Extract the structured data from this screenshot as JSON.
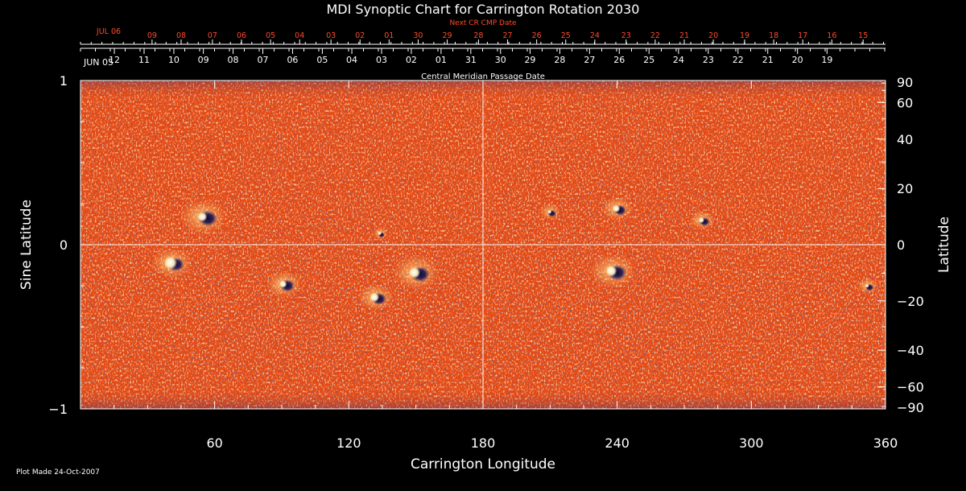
{
  "chart_data": {
    "type": "heatmap",
    "title": "MDI Synoptic Chart for Carrington Rotation 2030",
    "xlabel": "Carrington Longitude",
    "ylabel_left": "Sine Latitude",
    "ylabel_right": "Latitude",
    "xlim": [
      0,
      360
    ],
    "ylim": [
      -1,
      1
    ],
    "x_ticks": [
      "60",
      "120",
      "180",
      "240",
      "300",
      "360"
    ],
    "x_tick_values": [
      60,
      120,
      180,
      240,
      300,
      360
    ],
    "y_left_ticks": [
      "1",
      "0",
      "−1"
    ],
    "y_left_tick_values": [
      1,
      0,
      -1
    ],
    "y_right_ticks": [
      "90",
      "60",
      "40",
      "20",
      "0",
      "−20",
      "−40",
      "−60",
      "−90"
    ],
    "y_right_tick_values": [
      90,
      60,
      40,
      20,
      0,
      -20,
      -40,
      -60,
      -90
    ],
    "top_axis_title": "Central Meridian Passage Date",
    "top_axis_start_label": "JUN 05",
    "top_axis_dates": [
      "12",
      "11",
      "10",
      "09",
      "08",
      "07",
      "06",
      "05",
      "04",
      "03",
      "02",
      "01",
      "31",
      "30",
      "29",
      "28",
      "27",
      "26",
      "25",
      "24",
      "23",
      "22",
      "21",
      "20",
      "19"
    ],
    "top_axis_date_lons": [
      6.5,
      19.8,
      33.1,
      46.3,
      59.6,
      72.9,
      86.2,
      99.5,
      112.7,
      126.0,
      139.3,
      152.6,
      165.9,
      179.2,
      192.4,
      205.7,
      219.0,
      232.3,
      245.6,
      258.8,
      272.1,
      285.4,
      298.7,
      312.0,
      325.2
    ],
    "next_cr_title": "Next CR CMP Date",
    "next_cr_start_label": "JUL 06",
    "next_cr_dates": [
      "09",
      "08",
      "07",
      "06",
      "05",
      "04",
      "03",
      "02",
      "01",
      "30",
      "29",
      "28",
      "27",
      "26",
      "25",
      "24",
      "23",
      "22",
      "21",
      "20",
      "19",
      "18",
      "17",
      "16",
      "15"
    ],
    "next_cr_date_lons": [
      32,
      45,
      59,
      72,
      85,
      98,
      112,
      125,
      138,
      151,
      164,
      178,
      191,
      204,
      217,
      230,
      244,
      257,
      270,
      283,
      297,
      310,
      323,
      336,
      350
    ],
    "grid": false,
    "crosshair": {
      "x": 180,
      "y": 0
    },
    "active_regions": [
      {
        "lon": 55,
        "sinlat": 0.17,
        "pos_radius": 5,
        "neg_radius": 9
      },
      {
        "lon": 41,
        "sinlat": -0.11,
        "pos_radius": 7,
        "neg_radius": 8
      },
      {
        "lon": 91,
        "sinlat": -0.24,
        "pos_radius": 4,
        "neg_radius": 7
      },
      {
        "lon": 132,
        "sinlat": -0.32,
        "pos_radius": 5,
        "neg_radius": 7
      },
      {
        "lon": 150,
        "sinlat": -0.17,
        "pos_radius": 6,
        "neg_radius": 9
      },
      {
        "lon": 134,
        "sinlat": 0.07,
        "pos_radius": 2,
        "neg_radius": 3
      },
      {
        "lon": 238,
        "sinlat": -0.16,
        "pos_radius": 6,
        "neg_radius": 9
      },
      {
        "lon": 240,
        "sinlat": 0.22,
        "pos_radius": 4,
        "neg_radius": 6
      },
      {
        "lon": 210,
        "sinlat": 0.2,
        "pos_radius": 2,
        "neg_radius": 4
      },
      {
        "lon": 278,
        "sinlat": 0.15,
        "pos_radius": 3,
        "neg_radius": 5
      },
      {
        "lon": 352,
        "sinlat": -0.25,
        "pos_radius": 2,
        "neg_radius": 4
      }
    ],
    "colors": {
      "background": "#000000",
      "field_base": "#e84a12",
      "positive": "#fff5c8",
      "negative": "#1a1550",
      "date_red": "#ff4a2a"
    }
  },
  "footer": {
    "plot_made": "Plot Made 24-Oct-2007"
  }
}
